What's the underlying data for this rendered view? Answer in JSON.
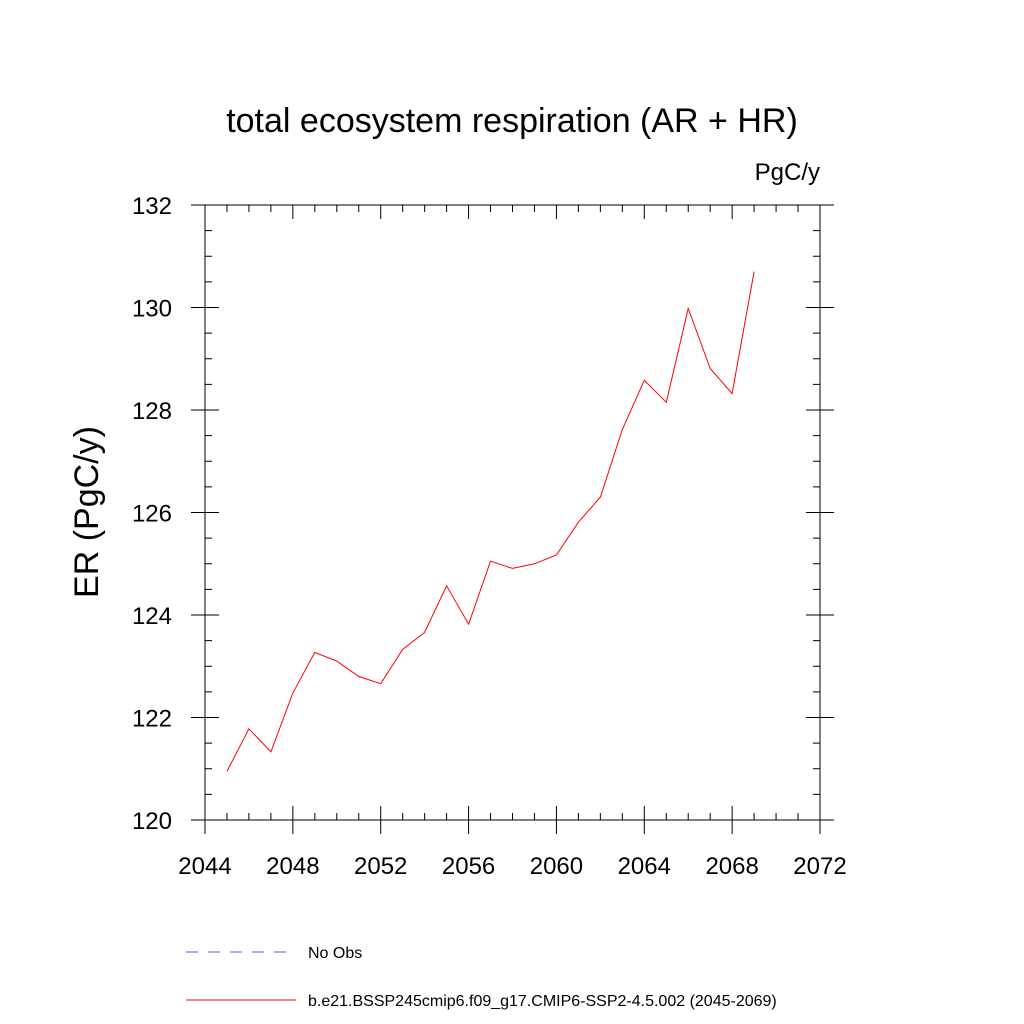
{
  "chart_data": {
    "type": "line",
    "title": "total ecosystem respiration (AR + HR)",
    "units_label": "PgC/y",
    "ylabel": "ER  (PgC/y)",
    "xlabel": "",
    "xlim": [
      2044,
      2072
    ],
    "ylim": [
      120,
      132
    ],
    "x_ticks": [
      2044,
      2048,
      2052,
      2056,
      2060,
      2064,
      2068,
      2072
    ],
    "y_ticks": [
      120,
      122,
      124,
      126,
      128,
      130,
      132
    ],
    "grid": false,
    "legend_position": "bottom",
    "series": [
      {
        "name": "b.e21.BSSP245cmip6.f09_g17.CMIP6-SSP2-4.5.002 (2045-2069)",
        "color": "#ff0000",
        "style": "solid",
        "x": [
          2045,
          2046,
          2047,
          2048,
          2049,
          2050,
          2051,
          2052,
          2053,
          2054,
          2055,
          2056,
          2057,
          2058,
          2059,
          2060,
          2061,
          2062,
          2063,
          2064,
          2065,
          2066,
          2067,
          2068,
          2069
        ],
        "y": [
          120.95,
          121.78,
          121.33,
          122.48,
          123.27,
          123.1,
          122.8,
          122.66,
          123.33,
          123.66,
          124.57,
          123.82,
          125.05,
          124.91,
          125.0,
          125.17,
          125.81,
          126.3,
          127.62,
          128.58,
          128.15,
          129.98,
          128.81,
          128.32,
          130.7
        ]
      },
      {
        "name": "No Obs",
        "color": "#6a5acd",
        "style": "dashed",
        "x": [],
        "y": []
      }
    ]
  }
}
